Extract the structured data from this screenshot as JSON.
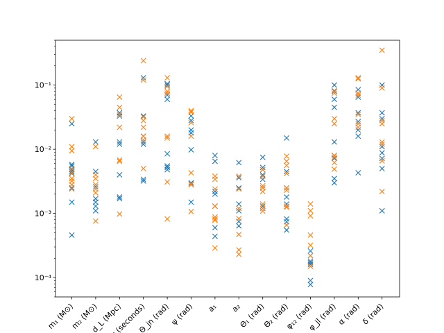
{
  "chart_data": {
    "type": "scatter",
    "yscale": "log",
    "ylim": [
      5e-05,
      0.5
    ],
    "yticks": [
      {
        "value": 0.0001,
        "label": "10⁻⁴"
      },
      {
        "value": 0.001,
        "label": "10⁻³"
      },
      {
        "value": 0.01,
        "label": "10⁻²"
      },
      {
        "value": 0.1,
        "label": "10⁻¹"
      }
    ],
    "categories": [
      "m₁ (M⊙)",
      "m₂ (M⊙)",
      "d_L (Mpc)",
      "t_c (seconds)",
      "Θ_jn (rad)",
      "ψ (rad)",
      "a₁",
      "a₂",
      "Θ₁ (rad)",
      "Θ₂ (rad)",
      "φ₁₂ (rad)",
      "φ_jl (rad)",
      "α (rad)",
      "δ (rad)"
    ],
    "series": [
      {
        "color": "#1f77b4",
        "marker": "x",
        "values": [
          [
            0.025,
            0.0058,
            0.0055,
            0.0048,
            0.0045,
            0.0042,
            0.0025,
            0.0015,
            0.00046
          ],
          [
            0.013,
            0.0045,
            0.0026,
            0.0017,
            0.0015,
            0.0013,
            0.0011
          ],
          [
            0.037,
            0.033,
            0.013,
            0.012,
            0.004,
            0.0018,
            0.0017
          ],
          [
            0.13,
            0.033,
            0.016,
            0.013,
            0.012,
            0.0034,
            0.0032
          ],
          [
            0.105,
            0.1,
            0.07,
            0.06,
            0.0085,
            0.0055,
            0.0052,
            0.0048
          ],
          [
            0.033,
            0.028,
            0.02,
            0.018,
            0.0098,
            0.003,
            0.0015
          ],
          [
            0.008,
            0.0065,
            0.0022,
            0.002,
            0.0013,
            0.0006,
            0.00044
          ],
          [
            0.0062,
            0.0036,
            0.0025,
            0.0014,
            0.0011,
            0.00075,
            0.00064
          ],
          [
            0.0075,
            0.0052,
            0.0048,
            0.004,
            0.0034,
            0.0025,
            0.0013,
            0.0012
          ],
          [
            0.015,
            0.0045,
            0.0025,
            0.0018,
            0.0014,
            0.00082,
            0.00074,
            0.00055
          ],
          [
            0.00026,
            0.00022,
            0.00018,
            0.00017,
            0.00016,
            9e-05,
            7.8e-05
          ],
          [
            0.1,
            0.08,
            0.06,
            0.045,
            0.013,
            0.008,
            0.0072,
            0.0035,
            0.003
          ],
          [
            0.085,
            0.065,
            0.037,
            0.027,
            0.02,
            0.016,
            0.0043
          ],
          [
            0.1,
            0.037,
            0.03,
            0.011,
            0.0088,
            0.0072,
            0.005,
            0.0011
          ]
        ]
      },
      {
        "color": "#ff7f0e",
        "marker": "x",
        "values": [
          [
            0.03,
            0.011,
            0.0095,
            0.005,
            0.0043,
            0.0035,
            0.0032,
            0.0028,
            0.0024
          ],
          [
            0.011,
            0.004,
            0.0035,
            0.0028,
            0.0024,
            0.0021,
            0.00076
          ],
          [
            0.065,
            0.045,
            0.035,
            0.022,
            0.0068,
            0.0065,
            0.00098
          ],
          [
            0.24,
            0.12,
            0.032,
            0.028,
            0.022,
            0.016,
            0.014,
            0.005
          ],
          [
            0.13,
            0.095,
            0.08,
            0.075,
            0.016,
            0.015,
            0.0031,
            0.00082
          ],
          [
            0.04,
            0.038,
            0.026,
            0.016,
            0.0043,
            0.0029,
            0.0028,
            0.00107
          ],
          [
            0.0038,
            0.0034,
            0.0024,
            0.0013,
            0.00088,
            0.00082,
            0.00078,
            0.00029
          ],
          [
            0.0038,
            0.0024,
            0.0012,
            0.00083,
            0.00047,
            0.00027,
            0.00023
          ],
          [
            0.0048,
            0.0038,
            0.0027,
            0.0025,
            0.0022,
            0.0014,
            0.0012,
            0.00109
          ],
          [
            0.0078,
            0.0065,
            0.0056,
            0.0042,
            0.0025,
            0.0023,
            0.0013,
            0.00125,
            0.00066
          ],
          [
            0.0014,
            0.0011,
            0.00092,
            0.00046,
            0.00032,
            0.00022,
            0.00015
          ],
          [
            0.082,
            0.075,
            0.03,
            0.025,
            0.008,
            0.0075,
            0.0062,
            0.0049
          ],
          [
            0.13,
            0.125,
            0.075,
            0.07,
            0.035,
            0.025,
            0.022
          ],
          [
            0.35,
            0.09,
            0.028,
            0.025,
            0.013,
            0.012,
            0.0066,
            0.0022
          ]
        ]
      }
    ]
  }
}
